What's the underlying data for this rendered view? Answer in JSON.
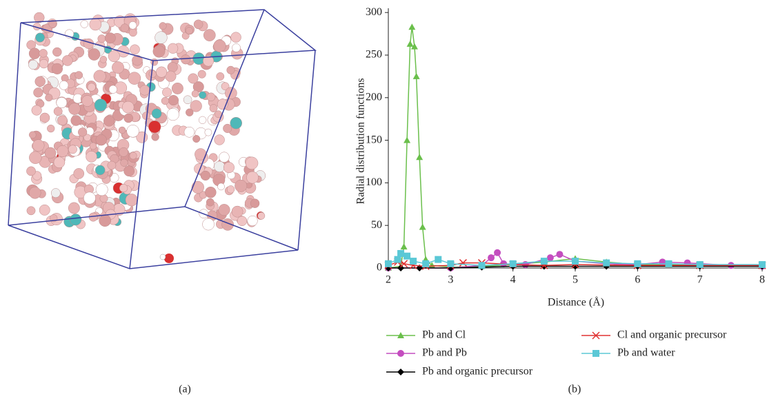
{
  "captions": [
    "(a)",
    "(b)"
  ],
  "chart_data": {
    "type": "line",
    "xlabel": "Distance (Å)",
    "ylabel": "Radial distribution functions",
    "xlim": [
      2,
      8
    ],
    "xticks": [
      2,
      3,
      4,
      5,
      6,
      7,
      8
    ],
    "ylim": [
      0,
      305
    ],
    "yticks": [
      0,
      50,
      100,
      150,
      200,
      250,
      300
    ],
    "legend": "bottom",
    "series": [
      {
        "name": "Pb and Cl",
        "color": "#6abf4b",
        "marker": "triangle",
        "x": [
          2.0,
          2.2,
          2.25,
          2.3,
          2.35,
          2.38,
          2.42,
          2.45,
          2.5,
          2.55,
          2.6,
          2.7,
          3.0,
          3.5,
          4.0,
          4.5,
          5.0,
          5.5,
          6.0,
          6.5,
          7.0,
          7.5,
          8.0
        ],
        "values": [
          0,
          2,
          25,
          150,
          263,
          283,
          260,
          225,
          130,
          48,
          10,
          3,
          1,
          2,
          4,
          7,
          11,
          7,
          4,
          4,
          4,
          3,
          3
        ]
      },
      {
        "name": "Pb and Pb",
        "color": "#c44dbf",
        "marker": "circle",
        "x": [
          2.0,
          3.0,
          3.5,
          3.65,
          3.75,
          3.85,
          4.2,
          4.6,
          4.75,
          5.0,
          5.5,
          6.0,
          6.4,
          6.8,
          7.5,
          8.0
        ],
        "values": [
          0,
          0,
          3,
          12,
          18,
          5,
          4,
          12,
          16,
          8,
          5,
          4,
          7,
          6,
          3,
          2
        ]
      },
      {
        "name": "Pb and organic precursor",
        "color": "#000000",
        "marker": "diamond",
        "x": [
          2.0,
          2.2,
          2.5,
          3.0,
          3.5,
          4.0,
          4.5,
          5.0,
          5.5,
          6.0,
          7.0,
          8.0
        ],
        "values": [
          0,
          0,
          0,
          0,
          1,
          2,
          2,
          2,
          2,
          2,
          2,
          2
        ]
      },
      {
        "name": "Cl and organic precursor",
        "color": "#e03030",
        "marker": "x",
        "x": [
          2.0,
          2.15,
          2.25,
          2.4,
          2.6,
          3.0,
          3.2,
          3.5,
          4.0,
          4.5,
          5.0,
          6.0,
          7.0,
          8.0
        ],
        "values": [
          3,
          7,
          5,
          3,
          2,
          3,
          6,
          6,
          4,
          3,
          4,
          3,
          3,
          3
        ]
      },
      {
        "name": "Pb and water",
        "color": "#5bc8d6",
        "marker": "square",
        "x": [
          2.0,
          2.15,
          2.2,
          2.3,
          2.4,
          2.6,
          2.8,
          3.0,
          3.5,
          4.0,
          4.5,
          5.0,
          5.5,
          6.0,
          6.5,
          7.0,
          8.0
        ],
        "values": [
          5,
          10,
          17,
          14,
          8,
          5,
          10,
          5,
          3,
          5,
          8,
          8,
          6,
          5,
          5,
          4,
          4
        ]
      }
    ]
  }
}
